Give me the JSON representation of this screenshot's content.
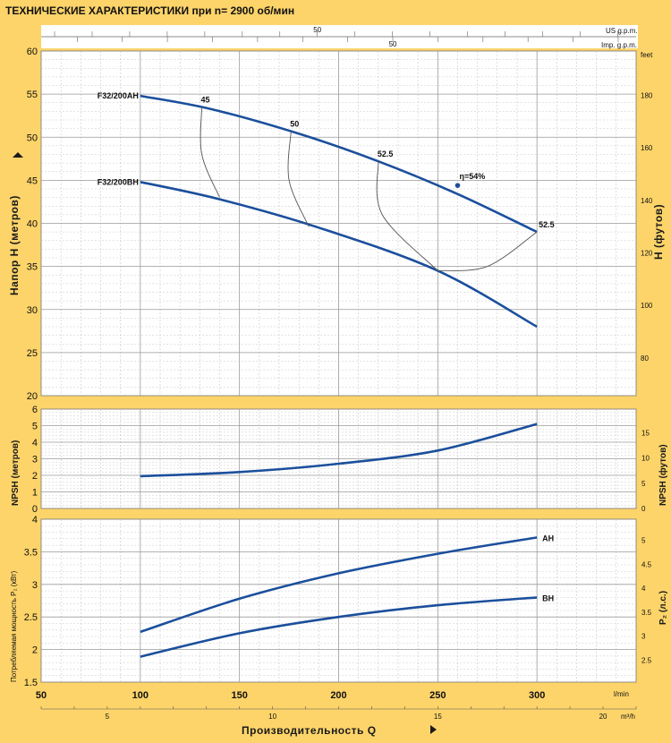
{
  "colors": {
    "background": "#fdd46a",
    "panel": "#ffffff",
    "grid": "#bdbdbd",
    "curve": "#1b4f9c",
    "iso": "#555555"
  },
  "chart_data": {
    "type": "line",
    "title": "ТЕХНИЧЕСКИЕ ХАРАКТЕРИСТИКИ при n= 2900 об/мин",
    "x_axis": {
      "label": "Производительность Q",
      "unit_lmin": "l/min",
      "unit_m3h": "m³/h",
      "range_lmin": [
        50,
        350
      ],
      "ticks_lmin": [
        "50",
        "100",
        "150",
        "200",
        "250",
        "300"
      ],
      "ticks_m3h": [
        {
          "v": 5,
          "t": "5"
        },
        {
          "v": 10,
          "t": "10"
        },
        {
          "v": 15,
          "t": "15"
        },
        {
          "v": 20,
          "t": "20"
        }
      ],
      "us_gpm": {
        "label": "US g.p.m.",
        "ticks": [
          {
            "v": 50,
            "t": "50"
          }
        ]
      },
      "imp_gpm": {
        "label": "Imp. g.p.m.",
        "ticks": [
          {
            "v": 50,
            "t": "50"
          }
        ]
      }
    },
    "head": {
      "ylabel": "Напор H  (метров)",
      "ylabel_right": "H  (футов)",
      "unit_right": "feet",
      "ylim": [
        20,
        60
      ],
      "ticks": [
        "20",
        "25",
        "30",
        "35",
        "40",
        "45",
        "50",
        "55",
        "60"
      ],
      "ticks_right": [
        {
          "v": 80,
          "t": "80"
        },
        {
          "v": 100,
          "t": "100"
        },
        {
          "v": 120,
          "t": "120"
        },
        {
          "v": 140,
          "t": "140"
        },
        {
          "v": 160,
          "t": "160"
        },
        {
          "v": 180,
          "t": "180"
        }
      ],
      "series": [
        {
          "name": "F32/200AH",
          "x": [
            100,
            135,
            180,
            220,
            260,
            300
          ],
          "y": [
            54.8,
            53.3,
            50.4,
            47.2,
            43.4,
            39.0
          ]
        },
        {
          "name": "F32/200BH",
          "x": [
            100,
            140,
            190,
            250,
            300
          ],
          "y": [
            44.8,
            42.8,
            39.5,
            34.5,
            28.0
          ]
        }
      ],
      "efficiency": [
        {
          "label": "45",
          "x": [
            131,
            131,
            140
          ],
          "y": [
            53.5,
            48.0,
            43.0
          ]
        },
        {
          "label": "50",
          "x": [
            176,
            175,
            185
          ],
          "y": [
            50.7,
            45.0,
            39.6
          ]
        },
        {
          "label": "52.5",
          "x": [
            220,
            222,
            250
          ],
          "y": [
            47.2,
            41.0,
            34.5
          ]
        },
        {
          "label": "52.5",
          "x": [
            300,
            275,
            250
          ],
          "y": [
            39.0,
            35.0,
            34.5
          ]
        }
      ],
      "eta_label": "η=54%",
      "eta_point": {
        "x": 260,
        "y": 44.4
      }
    },
    "npsh": {
      "ylabel": "NPSH  (метров)",
      "ylabel_right": "NPSH  (футов)",
      "ylim": [
        0,
        6
      ],
      "ticks": [
        "0",
        "1",
        "2",
        "3",
        "4",
        "5",
        "6"
      ],
      "ticks_right": [
        {
          "v": 0,
          "t": "0"
        },
        {
          "v": 5,
          "t": "5"
        },
        {
          "v": 10,
          "t": "10"
        },
        {
          "v": 15,
          "t": "15"
        }
      ],
      "series": [
        {
          "x": [
            100,
            150,
            200,
            250,
            300
          ],
          "y": [
            1.95,
            2.2,
            2.7,
            3.5,
            5.1
          ]
        }
      ]
    },
    "power": {
      "ylabel": "Потребляемая мощность P₂ (кВт)",
      "ylabel_right": "P₂  (л.с.)",
      "ylim": [
        1.5,
        4
      ],
      "ticks": [
        "1.5",
        "2",
        "2.5",
        "3",
        "3.5",
        "4"
      ],
      "ticks_right": [
        {
          "v": 2.5,
          "t": "2.5"
        },
        {
          "v": 3,
          "t": "3"
        },
        {
          "v": 3.5,
          "t": "3.5"
        },
        {
          "v": 4,
          "t": "4"
        },
        {
          "v": 4.5,
          "t": "4.5"
        },
        {
          "v": 5,
          "t": "5"
        }
      ],
      "series": [
        {
          "name": "AH",
          "x": [
            100,
            150,
            200,
            250,
            300
          ],
          "y": [
            2.27,
            2.78,
            3.17,
            3.47,
            3.72
          ]
        },
        {
          "name": "BH",
          "x": [
            100,
            150,
            200,
            250,
            300
          ],
          "y": [
            1.89,
            2.25,
            2.5,
            2.68,
            2.8
          ]
        }
      ]
    }
  }
}
